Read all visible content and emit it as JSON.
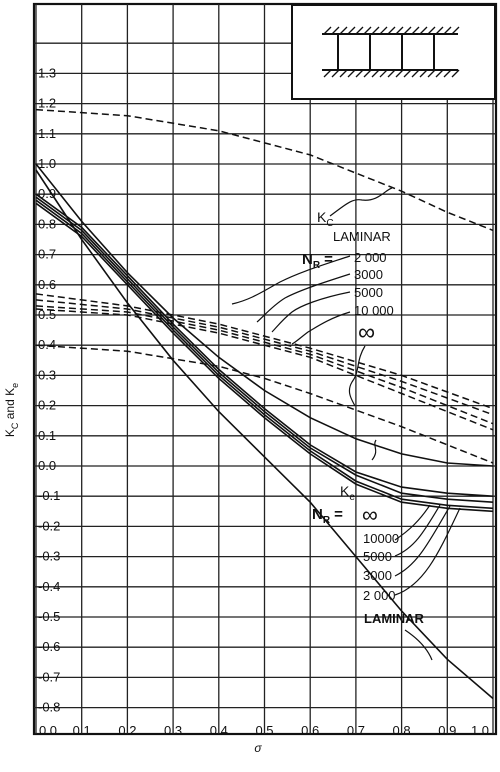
{
  "chart_data": {
    "type": "line",
    "title": "",
    "xlabel": "σ",
    "ylabel": "K_C and K_e",
    "xlim": [
      0,
      1.0
    ],
    "ylim": [
      -0.8,
      1.4
    ],
    "grid": true,
    "x_ticks": [
      "0.0",
      "0.1",
      "0.2",
      "0.3",
      "0.4",
      "0.5",
      "0.6",
      "0.7",
      "0.8",
      "0.9",
      "1.0"
    ],
    "y_ticks": [
      "1.3",
      "1.2",
      "1.1",
      "1.0",
      "0.9",
      "0.8",
      "0.7",
      "0.6",
      "0.5",
      "0.4",
      "0.3",
      "0.2",
      "0.1",
      "0.0",
      "-0.1",
      "-0.2",
      "-0.3",
      "-0.4",
      "-0.5",
      "-0.6",
      "-0.7",
      "-0.8"
    ],
    "series_kc": [
      {
        "name": "LAMINAR",
        "x": [
          0,
          0.2,
          0.4,
          0.6,
          0.7,
          0.8,
          0.9,
          1.0
        ],
        "y": [
          1.18,
          1.16,
          1.11,
          1.03,
          0.97,
          0.91,
          0.84,
          0.78
        ]
      },
      {
        "name": "2000",
        "x": [
          0,
          0.2,
          0.4,
          0.6,
          0.8,
          1.0
        ],
        "y": [
          0.57,
          0.53,
          0.47,
          0.39,
          0.3,
          0.19
        ]
      },
      {
        "name": "3000",
        "x": [
          0,
          0.2,
          0.4,
          0.6,
          0.8,
          1.0
        ],
        "y": [
          0.55,
          0.52,
          0.46,
          0.38,
          0.28,
          0.17
        ]
      },
      {
        "name": "5000",
        "x": [
          0,
          0.2,
          0.4,
          0.6,
          0.8,
          1.0
        ],
        "y": [
          0.53,
          0.51,
          0.45,
          0.37,
          0.26,
          0.14
        ]
      },
      {
        "name": "10000",
        "x": [
          0,
          0.2,
          0.4,
          0.6,
          0.8,
          1.0
        ],
        "y": [
          0.52,
          0.5,
          0.44,
          0.36,
          0.24,
          0.12
        ]
      },
      {
        "name": "∞",
        "x": [
          0,
          0.2,
          0.4,
          0.5,
          0.6,
          0.8,
          1.0
        ],
        "y": [
          0.4,
          0.38,
          0.33,
          0.29,
          0.24,
          0.13,
          0.01
        ]
      }
    ],
    "series_ke": [
      {
        "name": "∞",
        "x": [
          0,
          0.1,
          0.2,
          0.3,
          0.4,
          0.5,
          0.6,
          0.7,
          0.8,
          0.9,
          1.0
        ],
        "y": [
          1.0,
          0.81,
          0.64,
          0.49,
          0.36,
          0.25,
          0.16,
          0.09,
          0.04,
          0.01,
          0.0
        ]
      },
      {
        "name": "10000",
        "x": [
          0,
          0.1,
          0.2,
          0.3,
          0.4,
          0.5,
          0.6,
          0.7,
          0.8,
          0.9,
          1.0
        ],
        "y": [
          0.9,
          0.79,
          0.63,
          0.47,
          0.32,
          0.19,
          0.07,
          -0.02,
          -0.07,
          -0.09,
          -0.1
        ]
      },
      {
        "name": "5000",
        "x": [
          0,
          0.1,
          0.2,
          0.3,
          0.4,
          0.5,
          0.6,
          0.7,
          0.8,
          0.9,
          1.0
        ],
        "y": [
          0.89,
          0.78,
          0.62,
          0.46,
          0.31,
          0.18,
          0.06,
          -0.03,
          -0.09,
          -0.11,
          -0.12
        ]
      },
      {
        "name": "3000",
        "x": [
          0,
          0.1,
          0.2,
          0.3,
          0.4,
          0.5,
          0.6,
          0.7,
          0.8,
          0.9,
          1.0
        ],
        "y": [
          0.88,
          0.77,
          0.61,
          0.45,
          0.3,
          0.17,
          0.05,
          -0.05,
          -0.11,
          -0.13,
          -0.14
        ]
      },
      {
        "name": "2000",
        "x": [
          0,
          0.1,
          0.2,
          0.3,
          0.4,
          0.5,
          0.6,
          0.7,
          0.8,
          0.9,
          1.0
        ],
        "y": [
          0.87,
          0.76,
          0.6,
          0.44,
          0.29,
          0.16,
          0.04,
          -0.06,
          -0.12,
          -0.14,
          -0.15
        ]
      },
      {
        "name": "LAMINAR",
        "x": [
          0,
          0.1,
          0.2,
          0.3,
          0.4,
          0.5,
          0.6,
          0.7,
          0.8,
          0.9,
          1.0
        ],
        "y": [
          0.98,
          0.75,
          0.54,
          0.35,
          0.18,
          0.03,
          -0.12,
          -0.3,
          -0.48,
          -0.64,
          -0.77
        ]
      }
    ],
    "annotations": {
      "kc_label": "K",
      "kc_sub": "C",
      "kc_laminar": "LAMINAR",
      "nr_label": "N",
      "nr_sub": "R",
      "equals": "=",
      "kc_nr_values": [
        "2 000",
        "3000",
        "5000",
        "10 000",
        "∞"
      ],
      "ke_label": "K",
      "ke_sub": "e",
      "ke_nr_values": [
        "∞",
        "10000",
        "5000",
        "3000",
        "2 000"
      ],
      "ke_laminar": "LAMINAR"
    }
  }
}
